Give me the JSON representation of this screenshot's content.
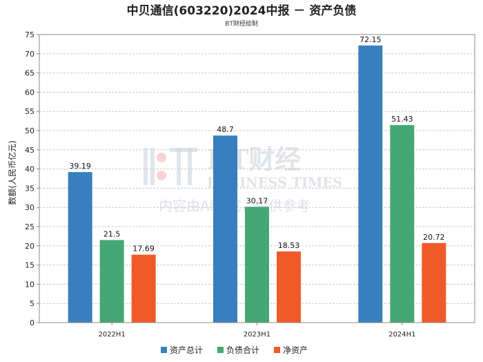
{
  "chart_data": {
    "type": "bar",
    "title": "中贝通信(603220)2024中报 － 资产负债",
    "subtitle": "BT财经绘制",
    "ylabel": "数额(人民币亿元)",
    "xlabel": "",
    "categories": [
      "2022H1",
      "2023H1",
      "2024H1"
    ],
    "ylim": [
      0,
      75
    ],
    "yticks": [
      0,
      5,
      10,
      15,
      20,
      25,
      30,
      35,
      40,
      45,
      50,
      55,
      60,
      65,
      70,
      75
    ],
    "grid": true,
    "legend_position": "bottom",
    "series": [
      {
        "name": "资产总计",
        "color": "#3a7fbd",
        "values": [
          39.19,
          48.7,
          72.15
        ],
        "labels": [
          "39.19",
          "48.7",
          "72.15"
        ]
      },
      {
        "name": "负债合计",
        "color": "#45a874",
        "values": [
          21.5,
          30.17,
          51.43
        ],
        "labels": [
          "21.5",
          "30.17",
          "51.43"
        ]
      },
      {
        "name": "净资产",
        "color": "#f05a28",
        "values": [
          17.69,
          18.53,
          20.72
        ],
        "labels": [
          "17.69",
          "18.53",
          "20.72"
        ]
      }
    ]
  },
  "watermark": {
    "logo_text": "BT财经",
    "brand_text": "BUSINESS TIMES",
    "notice": "内容由AI生成，仅供参考"
  }
}
